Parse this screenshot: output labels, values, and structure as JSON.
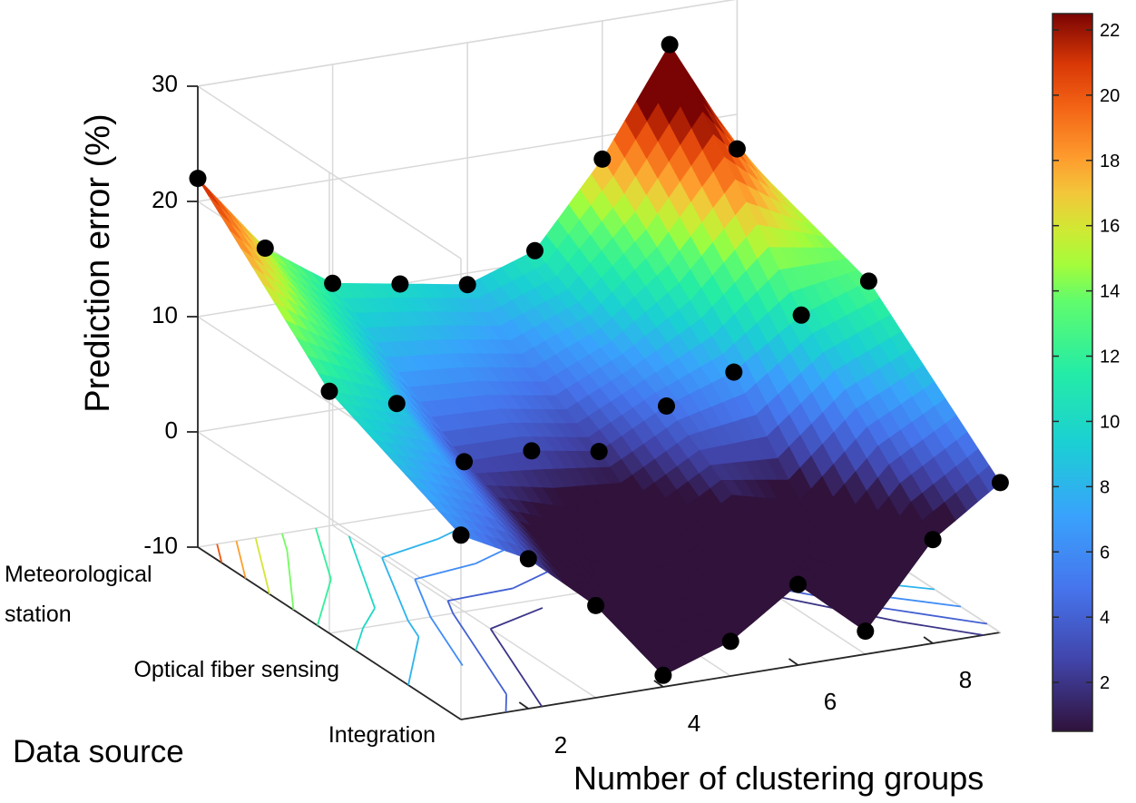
{
  "chart_data": {
    "type": "surface3d",
    "title": "",
    "xlabel": "Number of clustering groups",
    "ylabel": "Data source",
    "zlabel": "Prediction error (%)",
    "x_ticks": [
      "2",
      "4",
      "6",
      "8"
    ],
    "y_categories": [
      "Meteorological station",
      "Optical fiber sensing",
      "Integration"
    ],
    "y_tick_lines": [
      [
        "Meteorological",
        "station"
      ],
      [
        "Optical fiber sensing"
      ],
      [
        "Integration"
      ]
    ],
    "z_ticks": [
      "30",
      "20",
      "10",
      "0",
      "-10"
    ],
    "zlim": [
      -10,
      30
    ],
    "x": [
      1,
      2,
      3,
      4,
      5,
      6,
      7,
      8,
      9
    ],
    "series": [
      {
        "name": "Meteorological station",
        "values": [
          22,
          15,
          11,
          10,
          9,
          11,
          18,
          27,
          17
        ]
      },
      {
        "name": "Optical fiber sensing",
        "values": [
          11,
          9,
          3,
          3,
          2,
          5,
          7,
          11,
          13
        ]
      },
      {
        "name": "Integration",
        "values": [
          6,
          3,
          -2,
          -9,
          -7,
          -3,
          -8,
          -1,
          3
        ]
      }
    ],
    "colorbar": {
      "ticks": [
        "22",
        "20",
        "18",
        "16",
        "14",
        "12",
        "10",
        "8",
        "6",
        "4",
        "2"
      ],
      "range": [
        0.5,
        22.5
      ]
    },
    "contour_projection": true,
    "markers": "black filled circles at data points",
    "grid": true
  }
}
